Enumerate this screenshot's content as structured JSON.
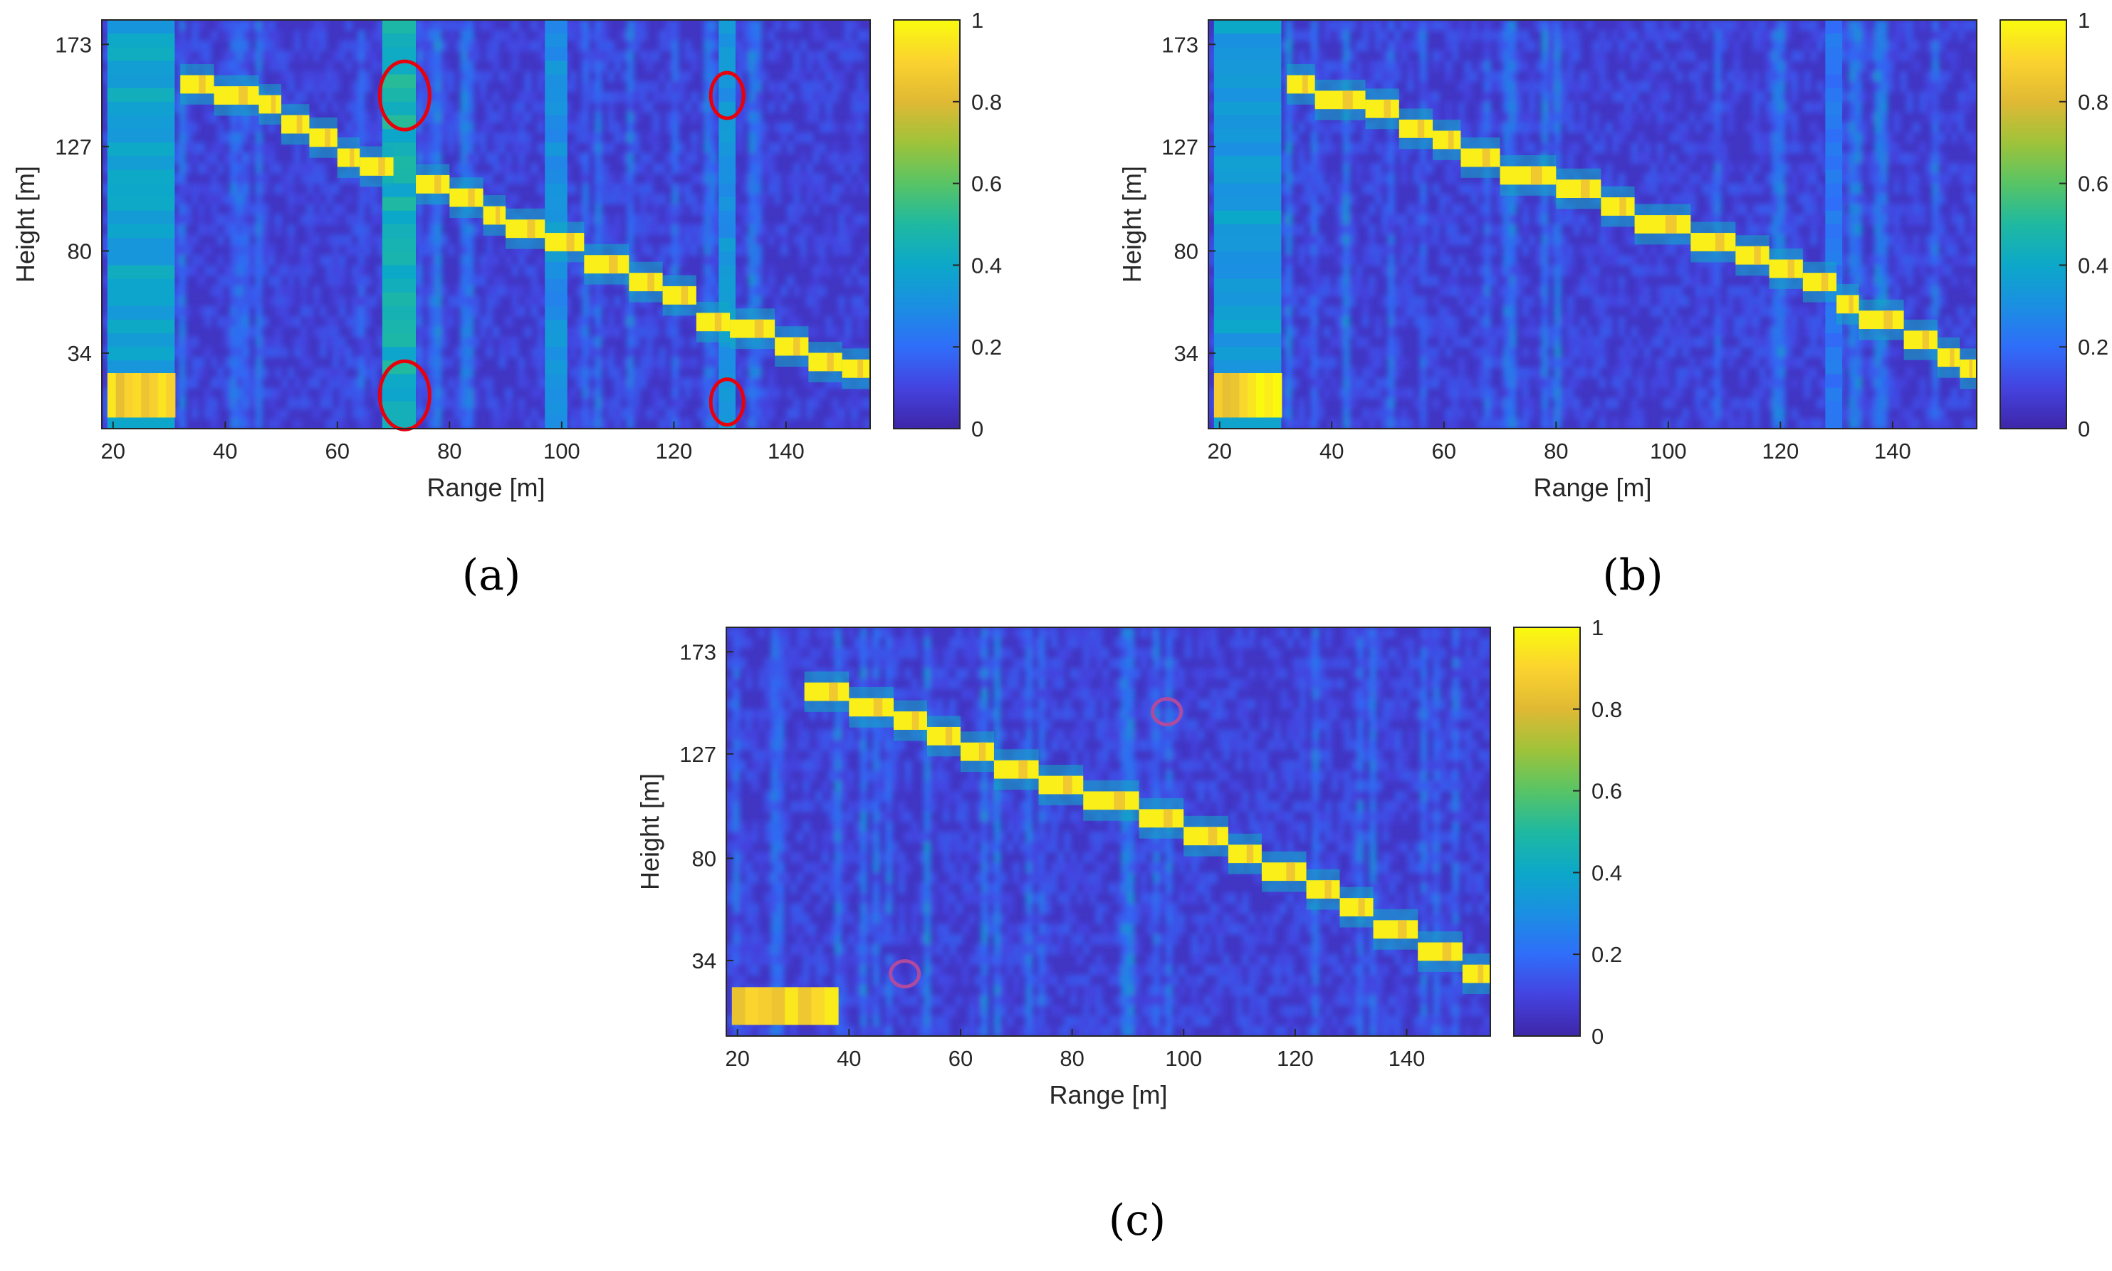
{
  "chart_data": [
    {
      "type": "heatmap",
      "panel_label": "(a)",
      "xlabel": "Range [m]",
      "ylabel": "Height [m]",
      "xlim": [
        18,
        155
      ],
      "ylim": [
        0,
        184
      ],
      "x_ticks": [
        "20",
        "40",
        "60",
        "80",
        "100",
        "120",
        "140"
      ],
      "y_ticks": [
        "173",
        "127",
        "80",
        "34"
      ],
      "colorbar": {
        "ticks": [
          "0",
          "0.2",
          "0.4",
          "0.6",
          "0.8",
          "1"
        ],
        "range": [
          0,
          1
        ]
      },
      "bright_track": [
        {
          "x": [
            32,
            38
          ],
          "y": 155
        },
        {
          "x": [
            38,
            46
          ],
          "y": 150
        },
        {
          "x": [
            46,
            50
          ],
          "y": 146
        },
        {
          "x": [
            50,
            55
          ],
          "y": 137
        },
        {
          "x": [
            55,
            60
          ],
          "y": 131
        },
        {
          "x": [
            60,
            64
          ],
          "y": 122
        },
        {
          "x": [
            64,
            70
          ],
          "y": 118
        },
        {
          "x": [
            74,
            80
          ],
          "y": 110
        },
        {
          "x": [
            80,
            86
          ],
          "y": 104
        },
        {
          "x": [
            86,
            90
          ],
          "y": 96
        },
        {
          "x": [
            90,
            97
          ],
          "y": 90
        },
        {
          "x": [
            97,
            104
          ],
          "y": 84
        },
        {
          "x": [
            104,
            112
          ],
          "y": 74
        },
        {
          "x": [
            112,
            118
          ],
          "y": 66
        },
        {
          "x": [
            118,
            124
          ],
          "y": 60
        },
        {
          "x": [
            124,
            130
          ],
          "y": 48
        },
        {
          "x": [
            130,
            138
          ],
          "y": 45
        },
        {
          "x": [
            138,
            144
          ],
          "y": 37
        },
        {
          "x": [
            144,
            150
          ],
          "y": 30
        },
        {
          "x": [
            150,
            155
          ],
          "y": 27
        }
      ],
      "bright_low_blocks": [
        {
          "x": [
            19,
            31
          ],
          "y": [
            5,
            25
          ]
        }
      ],
      "vertical_streaks": [
        {
          "x": [
            68,
            74
          ],
          "value": 0.45,
          "label": "wide"
        },
        {
          "x": [
            19,
            31
          ],
          "value": 0.38,
          "label": "left band"
        },
        {
          "x": [
            97,
            101
          ],
          "value": 0.3,
          "label": "thin"
        },
        {
          "x": [
            128,
            131
          ],
          "value": 0.32,
          "label": "thin"
        }
      ],
      "annotations": [
        {
          "shape": "ellipse",
          "color": "#e8000b",
          "x": 72,
          "y": 150
        },
        {
          "shape": "ellipse",
          "color": "#e8000b",
          "x": 72,
          "y": 15
        },
        {
          "shape": "ellipse",
          "color": "#e8000b",
          "x": 129.5,
          "y": 150
        },
        {
          "shape": "ellipse",
          "color": "#e8000b",
          "x": 129.5,
          "y": 12
        }
      ]
    },
    {
      "type": "heatmap",
      "panel_label": "(b)",
      "xlabel": "Range [m]",
      "ylabel": "Height [m]",
      "xlim": [
        18,
        155
      ],
      "ylim": [
        0,
        184
      ],
      "x_ticks": [
        "20",
        "40",
        "60",
        "80",
        "100",
        "120",
        "140"
      ],
      "y_ticks": [
        "173",
        "127",
        "80",
        "34"
      ],
      "colorbar": {
        "ticks": [
          "0",
          "0.2",
          "0.4",
          "0.6",
          "0.8",
          "1"
        ],
        "range": [
          0,
          1
        ]
      },
      "bright_track": [
        {
          "x": [
            32,
            37
          ],
          "y": 155
        },
        {
          "x": [
            37,
            46
          ],
          "y": 148
        },
        {
          "x": [
            46,
            52
          ],
          "y": 144
        },
        {
          "x": [
            52,
            58
          ],
          "y": 135
        },
        {
          "x": [
            58,
            63
          ],
          "y": 130
        },
        {
          "x": [
            63,
            70
          ],
          "y": 122
        },
        {
          "x": [
            70,
            80
          ],
          "y": 114
        },
        {
          "x": [
            80,
            88
          ],
          "y": 108
        },
        {
          "x": [
            88,
            94
          ],
          "y": 100
        },
        {
          "x": [
            94,
            104
          ],
          "y": 92
        },
        {
          "x": [
            104,
            112
          ],
          "y": 84
        },
        {
          "x": [
            112,
            118
          ],
          "y": 78
        },
        {
          "x": [
            118,
            124
          ],
          "y": 72
        },
        {
          "x": [
            124,
            130
          ],
          "y": 66
        },
        {
          "x": [
            130,
            134
          ],
          "y": 56
        },
        {
          "x": [
            134,
            142
          ],
          "y": 49
        },
        {
          "x": [
            142,
            148
          ],
          "y": 40
        },
        {
          "x": [
            148,
            152
          ],
          "y": 32
        },
        {
          "x": [
            152,
            155
          ],
          "y": 27
        }
      ],
      "bright_low_blocks": [
        {
          "x": [
            19,
            31
          ],
          "y": [
            5,
            25
          ]
        }
      ],
      "vertical_streaks": [
        {
          "x": [
            19,
            31
          ],
          "value": 0.35,
          "label": "left band"
        },
        {
          "x": [
            128,
            131
          ],
          "value": 0.22,
          "label": "thin"
        }
      ],
      "annotations": []
    },
    {
      "type": "heatmap",
      "panel_label": "(c)",
      "xlabel": "Range [m]",
      "ylabel": "Height [m]",
      "xlim": [
        18,
        155
      ],
      "ylim": [
        0,
        184
      ],
      "x_ticks": [
        "20",
        "40",
        "60",
        "80",
        "100",
        "120",
        "140"
      ],
      "y_ticks": [
        "173",
        "127",
        "80",
        "34"
      ],
      "colorbar": {
        "ticks": [
          "0",
          "0.2",
          "0.4",
          "0.6",
          "0.8",
          "1"
        ],
        "range": [
          0,
          1
        ]
      },
      "bright_track": [
        {
          "x": [
            32,
            40
          ],
          "y": 155
        },
        {
          "x": [
            40,
            48
          ],
          "y": 148
        },
        {
          "x": [
            48,
            54
          ],
          "y": 142
        },
        {
          "x": [
            54,
            60
          ],
          "y": 135
        },
        {
          "x": [
            60,
            66
          ],
          "y": 128
        },
        {
          "x": [
            66,
            74
          ],
          "y": 120
        },
        {
          "x": [
            74,
            82
          ],
          "y": 113
        },
        {
          "x": [
            82,
            92
          ],
          "y": 106
        },
        {
          "x": [
            92,
            100
          ],
          "y": 98
        },
        {
          "x": [
            100,
            108
          ],
          "y": 90
        },
        {
          "x": [
            108,
            114
          ],
          "y": 82
        },
        {
          "x": [
            114,
            122
          ],
          "y": 74
        },
        {
          "x": [
            122,
            128
          ],
          "y": 66
        },
        {
          "x": [
            128,
            134
          ],
          "y": 58
        },
        {
          "x": [
            134,
            142
          ],
          "y": 48
        },
        {
          "x": [
            142,
            150
          ],
          "y": 38
        },
        {
          "x": [
            150,
            155
          ],
          "y": 28
        }
      ],
      "bright_low_blocks": [
        {
          "x": [
            19,
            38
          ],
          "y": [
            5,
            22
          ]
        }
      ],
      "vertical_streaks": [],
      "annotations": [
        {
          "shape": "ellipse",
          "color": "#b04a9e",
          "x": 97,
          "y": 146
        },
        {
          "shape": "ellipse",
          "color": "#b04a9e",
          "x": 50,
          "y": 28
        }
      ]
    }
  ]
}
